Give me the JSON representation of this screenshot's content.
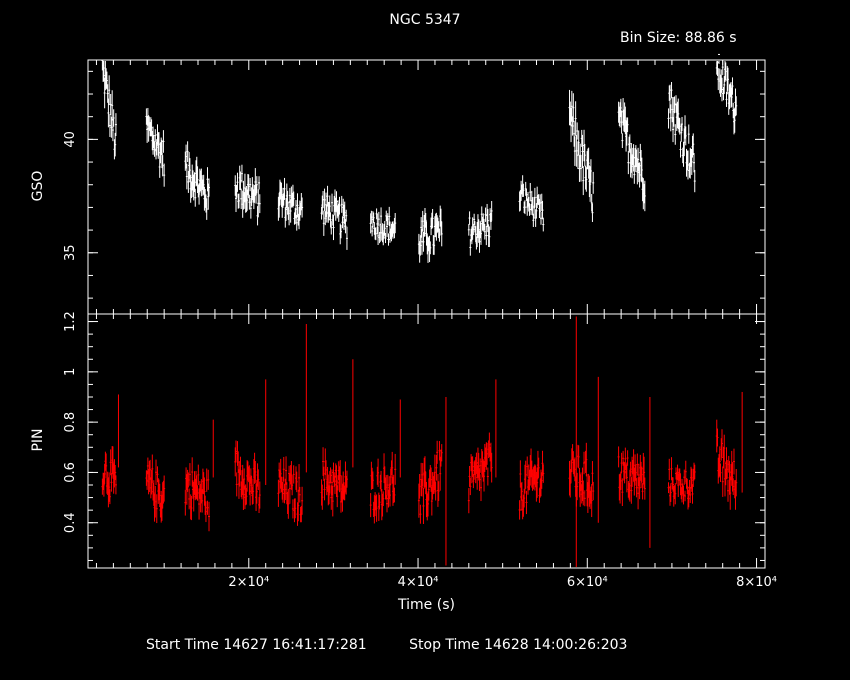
{
  "header": {
    "title": "NGC 5347",
    "bin_size": "Bin Size: 88.86 s"
  },
  "footer": {
    "start_time": "Start Time 14627 16:41:17:281",
    "stop_time": "Stop Time 14628 14:00:26:203"
  },
  "colors": {
    "background": "#000000",
    "axes": "#ffffff",
    "gso_series": "#ffffff",
    "pin_series": "#ff0000"
  },
  "chart_data": [
    {
      "type": "scatter",
      "panel": "top",
      "ylabel": "GSO",
      "xlabel": "",
      "xlim": [
        1000,
        81000
      ],
      "ylim": [
        32.3,
        43.5
      ],
      "yticks": [
        35,
        40
      ],
      "ytick_labels": [
        "35",
        "40"
      ],
      "grid": false,
      "series": [
        {
          "color": "#ffffff",
          "error_bars": true,
          "segments": [
            {
              "x0": 2700,
              "x1": 4300,
              "start": 43.2,
              "end": 39.8,
              "spread": 0.9
            },
            {
              "x0": 7900,
              "x1": 10000,
              "start": 40.6,
              "end": 39.2,
              "spread": 0.8
            },
            {
              "x0": 12500,
              "x1": 15300,
              "start": 38.8,
              "end": 37.4,
              "spread": 0.8
            },
            {
              "x0": 18400,
              "x1": 21300,
              "start": 38.0,
              "end": 37.3,
              "spread": 0.8
            },
            {
              "x0": 23500,
              "x1": 26300,
              "start": 37.4,
              "end": 36.8,
              "spread": 0.7
            },
            {
              "x0": 28600,
              "x1": 31600,
              "start": 37.0,
              "end": 36.3,
              "spread": 0.7
            },
            {
              "x0": 34400,
              "x1": 37300,
              "start": 36.4,
              "end": 36.0,
              "spread": 0.6
            },
            {
              "x0": 40100,
              "x1": 42800,
              "start": 35.6,
              "end": 35.9,
              "spread": 0.8
            },
            {
              "x0": 46000,
              "x1": 48700,
              "start": 35.9,
              "end": 36.3,
              "spread": 0.7
            },
            {
              "x0": 52000,
              "x1": 54800,
              "start": 37.6,
              "end": 36.6,
              "spread": 0.6
            },
            {
              "x0": 57900,
              "x1": 60700,
              "start": 41.0,
              "end": 37.5,
              "spread": 1.0
            },
            {
              "x0": 63700,
              "x1": 66800,
              "start": 40.8,
              "end": 38.3,
              "spread": 0.9
            },
            {
              "x0": 69600,
              "x1": 72700,
              "start": 41.8,
              "end": 38.8,
              "spread": 0.9
            },
            {
              "x0": 75300,
              "x1": 77600,
              "start": 43.2,
              "end": 41.3,
              "spread": 0.8
            }
          ]
        }
      ]
    },
    {
      "type": "scatter",
      "panel": "bottom",
      "ylabel": "PIN",
      "xlabel": "Time (s)",
      "xlim": [
        1000,
        81000
      ],
      "ylim": [
        0.22,
        1.23
      ],
      "yticks": [
        0.4,
        0.6,
        0.8,
        1,
        1.2
      ],
      "ytick_labels": [
        "0.4",
        "0.6",
        "0.8",
        "1",
        "1.2"
      ],
      "xticks": [
        20000,
        40000,
        60000,
        80000
      ],
      "xtick_labels": [
        "2×10⁴",
        "4×10⁴",
        "6×10⁴",
        "8×10⁴"
      ],
      "grid": false,
      "series": [
        {
          "color": "#ff0000",
          "error_bars": true,
          "segments": [
            {
              "x0": 2700,
              "x1": 4300,
              "start": 0.62,
              "end": 0.55,
              "spread": 0.08
            },
            {
              "x0": 7900,
              "x1": 10000,
              "start": 0.56,
              "end": 0.5,
              "spread": 0.08
            },
            {
              "x0": 12500,
              "x1": 15300,
              "start": 0.55,
              "end": 0.5,
              "spread": 0.08
            },
            {
              "x0": 18400,
              "x1": 21300,
              "start": 0.62,
              "end": 0.52,
              "spread": 0.08
            },
            {
              "x0": 23500,
              "x1": 26300,
              "start": 0.55,
              "end": 0.5,
              "spread": 0.08
            },
            {
              "x0": 28600,
              "x1": 31600,
              "start": 0.58,
              "end": 0.52,
              "spread": 0.08
            },
            {
              "x0": 34400,
              "x1": 37300,
              "start": 0.52,
              "end": 0.57,
              "spread": 0.08
            },
            {
              "x0": 40100,
              "x1": 42800,
              "start": 0.48,
              "end": 0.62,
              "spread": 0.09
            },
            {
              "x0": 46000,
              "x1": 48700,
              "start": 0.55,
              "end": 0.64,
              "spread": 0.08
            },
            {
              "x0": 52000,
              "x1": 54800,
              "start": 0.52,
              "end": 0.6,
              "spread": 0.08
            },
            {
              "x0": 57900,
              "x1": 60700,
              "start": 0.6,
              "end": 0.55,
              "spread": 0.09
            },
            {
              "x0": 63700,
              "x1": 66800,
              "start": 0.6,
              "end": 0.56,
              "spread": 0.08
            },
            {
              "x0": 69600,
              "x1": 72700,
              "start": 0.56,
              "end": 0.55,
              "spread": 0.06
            },
            {
              "x0": 75300,
              "x1": 77600,
              "start": 0.66,
              "end": 0.55,
              "spread": 0.09
            }
          ],
          "spikes": [
            {
              "x": 4600,
              "low": 0.62,
              "high": 0.91
            },
            {
              "x": 15800,
              "low": 0.58,
              "high": 0.81
            },
            {
              "x": 22000,
              "low": 0.55,
              "high": 0.97
            },
            {
              "x": 26800,
              "low": 0.6,
              "high": 1.19
            },
            {
              "x": 32300,
              "low": 0.62,
              "high": 1.05
            },
            {
              "x": 37900,
              "low": 0.58,
              "high": 0.89
            },
            {
              "x": 43300,
              "low": 0.23,
              "high": 0.9
            },
            {
              "x": 49200,
              "low": 0.58,
              "high": 0.97
            },
            {
              "x": 58700,
              "low": 0.22,
              "high": 1.22
            },
            {
              "x": 61300,
              "low": 0.4,
              "high": 0.98
            },
            {
              "x": 67400,
              "low": 0.3,
              "high": 0.9
            },
            {
              "x": 78300,
              "low": 0.52,
              "high": 0.92
            }
          ]
        }
      ]
    }
  ]
}
